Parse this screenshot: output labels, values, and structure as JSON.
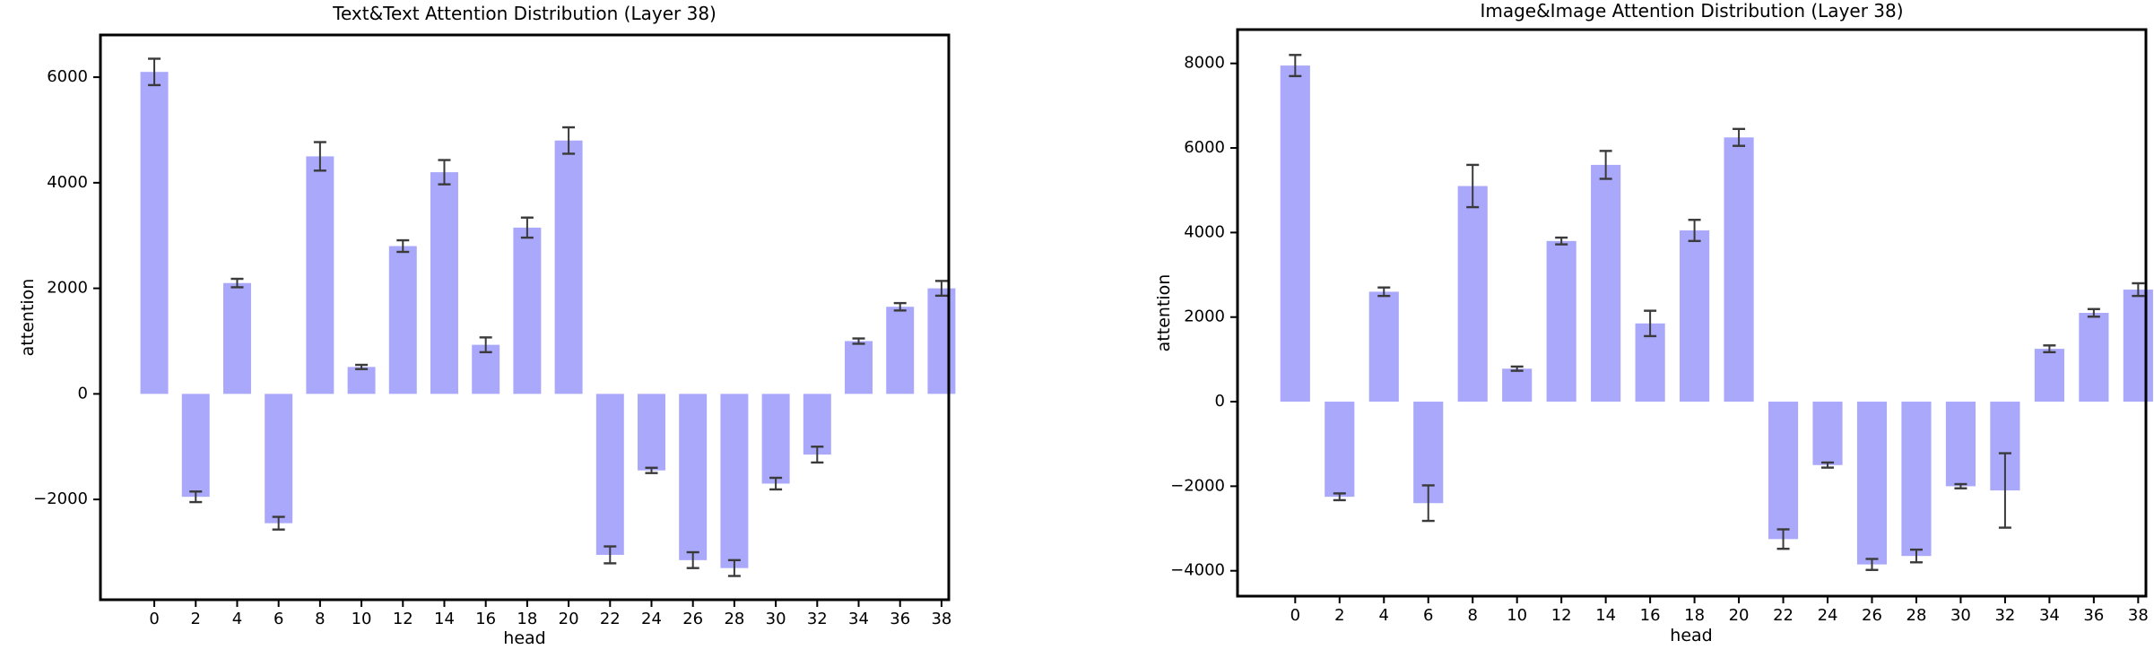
{
  "page": {
    "background": "#ffffff"
  },
  "style": {
    "bar_color": "#aaa8fa",
    "error_color": "#3a3a3a",
    "axis_color": "#000000",
    "text_color": "#000000"
  },
  "chart_data": [
    {
      "type": "bar",
      "title": "Text&Text Attention Distribution (Layer 38)",
      "xlabel": "head",
      "ylabel": "attention",
      "categories": [
        0,
        2,
        4,
        6,
        8,
        10,
        12,
        14,
        16,
        18,
        20,
        22,
        24,
        26,
        28,
        30,
        32,
        34,
        36,
        38
      ],
      "values": [
        6100,
        -1950,
        2100,
        -2450,
        4500,
        510,
        2800,
        4200,
        930,
        3150,
        4800,
        -3050,
        -1450,
        -3150,
        -3300,
        -1700,
        -1150,
        1000,
        1650,
        2000
      ],
      "errors": [
        250,
        100,
        80,
        120,
        270,
        40,
        110,
        230,
        140,
        190,
        250,
        160,
        50,
        150,
        150,
        110,
        150,
        50,
        70,
        140
      ],
      "ylim": [
        -3900,
        6800
      ],
      "yticks": [
        6000,
        4000,
        2000,
        0,
        -2000
      ],
      "xlim": [
        -2.6,
        38.35
      ],
      "grid": false,
      "legend": null
    },
    {
      "type": "bar",
      "title": "Image&Image Attention Distribution (Layer 38)",
      "xlabel": "head",
      "ylabel": "attention",
      "categories": [
        0,
        2,
        4,
        6,
        8,
        10,
        12,
        14,
        16,
        18,
        20,
        22,
        24,
        26,
        28,
        30,
        32,
        34,
        36,
        38
      ],
      "values": [
        7950,
        -2250,
        2600,
        -2400,
        5100,
        780,
        3800,
        5600,
        1850,
        4050,
        6250,
        -3250,
        -1500,
        -3850,
        -3650,
        -2000,
        -2100,
        1250,
        2100,
        2650
      ],
      "errors": [
        250,
        80,
        100,
        420,
        500,
        50,
        80,
        330,
        300,
        250,
        200,
        230,
        60,
        130,
        150,
        50,
        880,
        80,
        90,
        150
      ],
      "ylim": [
        -4600,
        8800
      ],
      "yticks": [
        8000,
        6000,
        4000,
        2000,
        0,
        -2000,
        -4000
      ],
      "xlim": [
        -2.6,
        38.35
      ],
      "grid": false,
      "legend": null
    }
  ]
}
